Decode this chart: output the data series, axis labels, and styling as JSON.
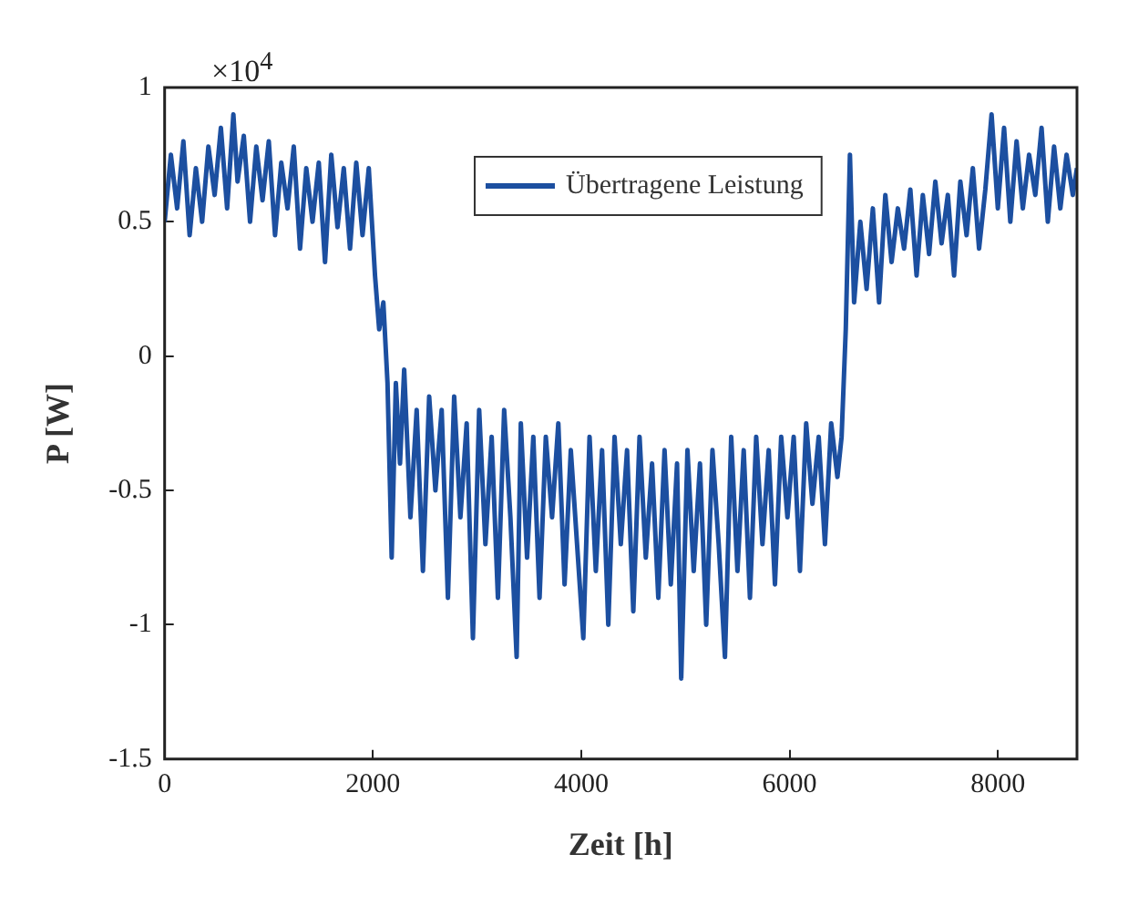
{
  "chart_data": {
    "type": "line",
    "xlabel": "Zeit [h]",
    "ylabel": "P [W]",
    "annotations": [
      "×10$^{4}$"
    ],
    "xlim": [
      0,
      8760
    ],
    "xticks": [
      0,
      2000,
      4000,
      6000,
      8000
    ],
    "ylim": [
      -1.5,
      1
    ],
    "yticks": [
      -1.5,
      -1,
      -0.5,
      0,
      0.5,
      1
    ],
    "grid": false,
    "legend": "top",
    "marker": "none",
    "line_style": "solid",
    "series": [
      {
        "name": "Übertragene Leistung",
        "color": "#1c4fa0",
        "x": [
          0,
          60,
          120,
          180,
          240,
          300,
          360,
          420,
          480,
          540,
          600,
          660,
          700,
          760,
          820,
          880,
          940,
          1000,
          1060,
          1120,
          1180,
          1240,
          1300,
          1360,
          1420,
          1480,
          1540,
          1600,
          1660,
          1720,
          1780,
          1840,
          1900,
          1960,
          2020,
          2060,
          2100,
          2140,
          2180,
          2220,
          2260,
          2300,
          2360,
          2420,
          2480,
          2540,
          2600,
          2660,
          2720,
          2780,
          2840,
          2900,
          2960,
          3020,
          3080,
          3140,
          3200,
          3260,
          3320,
          3380,
          3420,
          3480,
          3540,
          3600,
          3660,
          3720,
          3780,
          3840,
          3900,
          3960,
          4020,
          4080,
          4140,
          4200,
          4260,
          4320,
          4380,
          4440,
          4500,
          4560,
          4620,
          4680,
          4740,
          4800,
          4860,
          4920,
          4960,
          5020,
          5080,
          5140,
          5200,
          5260,
          5320,
          5380,
          5440,
          5500,
          5560,
          5620,
          5680,
          5740,
          5800,
          5860,
          5920,
          5980,
          6040,
          6100,
          6160,
          6220,
          6280,
          6340,
          6400,
          6460,
          6500,
          6540,
          6580,
          6620,
          6680,
          6740,
          6800,
          6860,
          6920,
          6980,
          7040,
          7100,
          7160,
          7220,
          7280,
          7340,
          7400,
          7460,
          7520,
          7580,
          7640,
          7700,
          7760,
          7820,
          7880,
          7940,
          8000,
          8060,
          8120,
          8180,
          8240,
          8300,
          8360,
          8420,
          8480,
          8540,
          8600,
          8660,
          8720,
          8760
        ],
        "values": [
          0.5,
          0.75,
          0.55,
          0.8,
          0.45,
          0.7,
          0.5,
          0.78,
          0.6,
          0.85,
          0.55,
          0.9,
          0.65,
          0.82,
          0.5,
          0.78,
          0.58,
          0.8,
          0.45,
          0.72,
          0.55,
          0.78,
          0.4,
          0.7,
          0.5,
          0.72,
          0.35,
          0.75,
          0.48,
          0.7,
          0.4,
          0.72,
          0.45,
          0.7,
          0.3,
          0.1,
          0.2,
          -0.1,
          -0.75,
          -0.1,
          -0.4,
          -0.05,
          -0.6,
          -0.2,
          -0.8,
          -0.15,
          -0.5,
          -0.2,
          -0.9,
          -0.15,
          -0.6,
          -0.25,
          -1.05,
          -0.2,
          -0.7,
          -0.3,
          -0.9,
          -0.2,
          -0.6,
          -1.12,
          -0.25,
          -0.75,
          -0.3,
          -0.9,
          -0.3,
          -0.6,
          -0.25,
          -0.85,
          -0.35,
          -0.7,
          -1.05,
          -0.3,
          -0.8,
          -0.35,
          -1.0,
          -0.3,
          -0.7,
          -0.35,
          -0.95,
          -0.3,
          -0.75,
          -0.4,
          -0.9,
          -0.35,
          -0.85,
          -0.4,
          -1.2,
          -0.35,
          -0.8,
          -0.4,
          -1.0,
          -0.35,
          -0.7,
          -1.12,
          -0.3,
          -0.8,
          -0.35,
          -0.9,
          -0.3,
          -0.7,
          -0.35,
          -0.85,
          -0.3,
          -0.6,
          -0.3,
          -0.8,
          -0.25,
          -0.55,
          -0.3,
          -0.7,
          -0.25,
          -0.45,
          -0.3,
          0.1,
          0.75,
          0.2,
          0.5,
          0.25,
          0.55,
          0.2,
          0.6,
          0.35,
          0.55,
          0.4,
          0.62,
          0.3,
          0.6,
          0.38,
          0.65,
          0.42,
          0.6,
          0.3,
          0.65,
          0.45,
          0.7,
          0.4,
          0.62,
          0.9,
          0.55,
          0.85,
          0.5,
          0.8,
          0.55,
          0.75,
          0.6,
          0.85,
          0.5,
          0.78,
          0.55,
          0.75,
          0.6,
          0.7
        ]
      }
    ]
  }
}
